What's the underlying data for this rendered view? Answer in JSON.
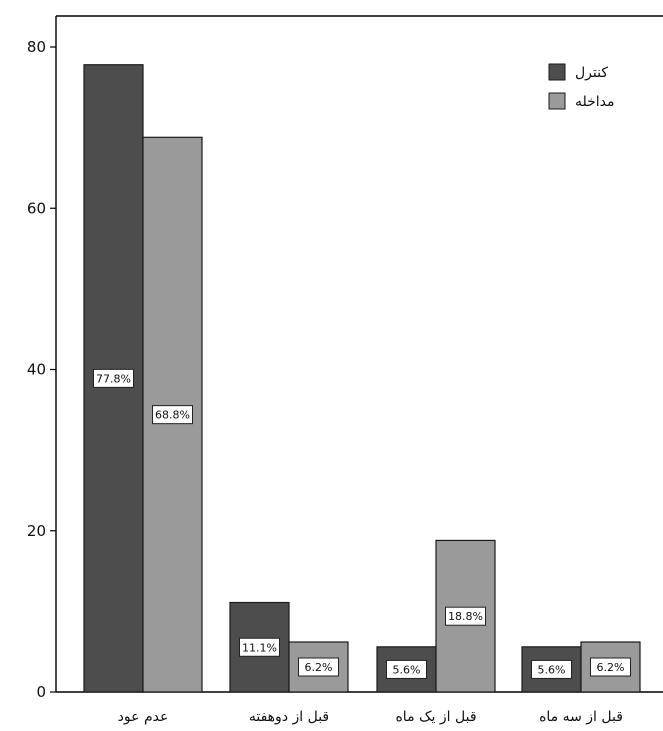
{
  "chart_data": {
    "type": "bar",
    "title": "",
    "xlabel": "",
    "ylabel": "",
    "ylim": [
      0,
      80
    ],
    "yticks": [
      0,
      20,
      40,
      60,
      80
    ],
    "grid": false,
    "legend_position": "top-right",
    "categories": [
      "عدم عود",
      "قبل از دوهفته",
      "قبل از یک ماه",
      "قبل از سه ماه"
    ],
    "series": [
      {
        "name": "کنترل",
        "color": "#4d4d4d",
        "values": [
          77.8,
          11.1,
          5.6,
          5.6
        ],
        "labels": [
          "77.8%",
          "11.1%",
          "5.6%",
          "5.6%"
        ]
      },
      {
        "name": "مداخله",
        "color": "#9a9a9a",
        "values": [
          68.8,
          6.2,
          18.8,
          6.2
        ],
        "labels": [
          "68.8%",
          "6.2%",
          "18.8%",
          "6.2%"
        ]
      }
    ]
  }
}
